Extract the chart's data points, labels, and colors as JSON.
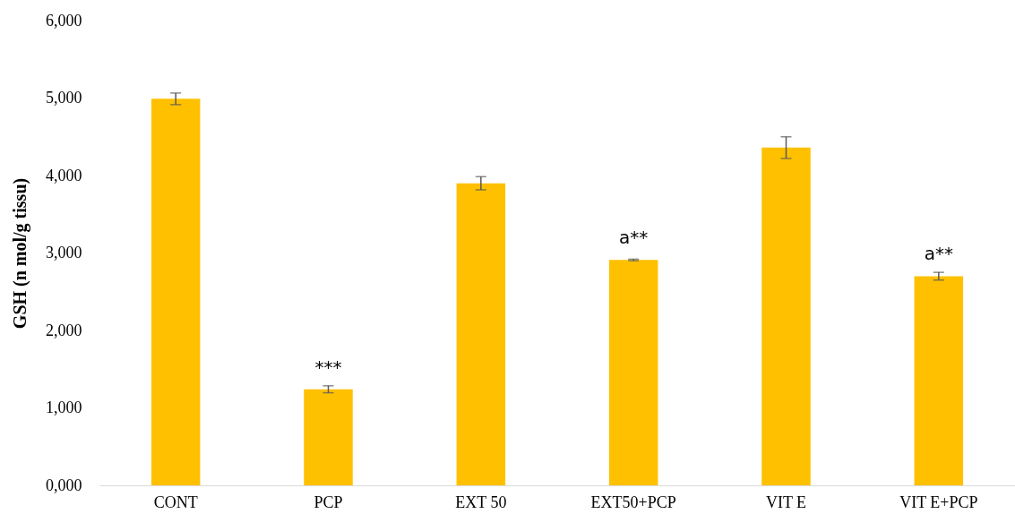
{
  "chart_data": {
    "type": "bar",
    "ylabel": "GSH (n mol/g tissu)",
    "categories": [
      "CONT",
      "PCP",
      "EXT 50",
      "EXT50+PCP",
      "VIT E",
      "VIT E+PCP"
    ],
    "values": [
      4990,
      1240,
      3900,
      2910,
      4360,
      2700
    ],
    "errors": [
      75,
      45,
      85,
      10,
      140,
      50
    ],
    "color": "#ffc000",
    "ylim": [
      0,
      6000
    ],
    "yticks": [
      {
        "value": 0,
        "label": "0,000"
      },
      {
        "value": 1000,
        "label": "1,000"
      },
      {
        "value": 2000,
        "label": "2,000"
      },
      {
        "value": 3000,
        "label": "3,000"
      },
      {
        "value": 4000,
        "label": "4,000"
      },
      {
        "value": 5000,
        "label": "5,000"
      },
      {
        "value": 6000,
        "label": "6,000"
      }
    ],
    "grid": false,
    "annotations": [
      {
        "text": "***",
        "x": "PCP",
        "y": 1240
      },
      {
        "text": "a**",
        "x": "EXT50+PCP",
        "y": 2910
      },
      {
        "text": "a**",
        "x": "VIT E+PCP",
        "y": 2700
      }
    ]
  }
}
